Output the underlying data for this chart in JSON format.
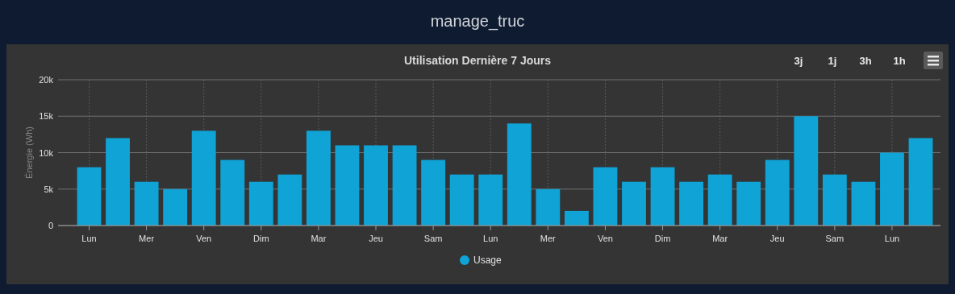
{
  "chart_data": {
    "type": "bar",
    "title": "Utilisation Dernière 7 Jours",
    "subtitle": "manage_truc",
    "ylabel": "Énergie (Wh)",
    "annotations": [
      "3j",
      "1j",
      "3h",
      "1h"
    ],
    "categories": [
      "Lun",
      null,
      "Mer",
      null,
      "Ven",
      null,
      "Dim",
      null,
      "Mar",
      null,
      "Jeu",
      null,
      "Sam",
      null,
      "Lun",
      null,
      "Mer",
      null,
      "Ven",
      null,
      "Dim",
      null,
      "Mar",
      null,
      "Jeu",
      null,
      "Sam",
      null,
      "Lun",
      null
    ],
    "series": [
      {
        "name": "Usage",
        "color": "#0fa3d6",
        "values": [
          8000,
          12000,
          6000,
          5000,
          13000,
          9000,
          6000,
          7000,
          13000,
          11000,
          11000,
          11000,
          9000,
          7000,
          7000,
          14000,
          5000,
          2000,
          8000,
          6000,
          8000,
          6000,
          7000,
          6000,
          9000,
          15000,
          7000,
          6000,
          10000,
          12000
        ]
      }
    ],
    "ylim": [
      0,
      20000
    ],
    "yticks": [
      0,
      {
        "value": 5000,
        "label": "5k"
      },
      {
        "value": 10000,
        "label": "10k"
      },
      {
        "value": 15000,
        "label": "15k"
      },
      {
        "value": 20000,
        "label": "20k"
      }
    ],
    "grid": true,
    "legend": "bottom"
  }
}
